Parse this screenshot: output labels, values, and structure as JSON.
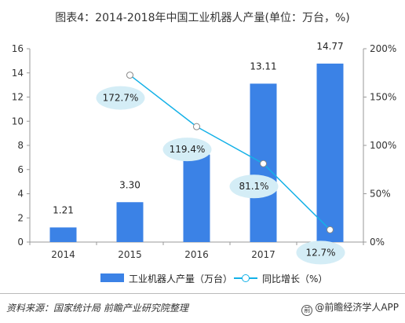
{
  "title": "图表4：2014-2018年中国工业机器人产量(单位：万台，%)",
  "chart_data": {
    "type": "bar",
    "categories": [
      "2014",
      "2015",
      "2016",
      "2017",
      "2018"
    ],
    "series": [
      {
        "name": "工业机器人产量（万台）",
        "type": "bar",
        "axis": "left",
        "values": [
          1.21,
          3.3,
          7.24,
          13.11,
          14.77
        ],
        "labels": [
          "1.21",
          "3.30",
          "",
          "13.11",
          "14.77"
        ],
        "color": "#3b82e6"
      },
      {
        "name": "同比增长（%）",
        "type": "line",
        "axis": "right",
        "values": [
          null,
          172.7,
          119.4,
          81.1,
          12.7
        ],
        "labels": [
          "",
          "172.7%",
          "119.4%",
          "81.1%",
          "12.7%"
        ],
        "color": "#14b1e7"
      }
    ],
    "y_left": {
      "min": 0,
      "max": 16,
      "ticks": [
        "0",
        "2",
        "4",
        "6",
        "8",
        "10",
        "12",
        "14",
        "16"
      ]
    },
    "y_right": {
      "min": 0,
      "max": 200,
      "ticks": [
        "0%",
        "50%",
        "100%",
        "150%",
        "200%"
      ]
    },
    "grid": false,
    "legend": "bottom"
  },
  "footer": {
    "source": "资料来源：国家统计局 前瞻产业研究院整理",
    "brand": "@前瞻经济学人APP"
  }
}
